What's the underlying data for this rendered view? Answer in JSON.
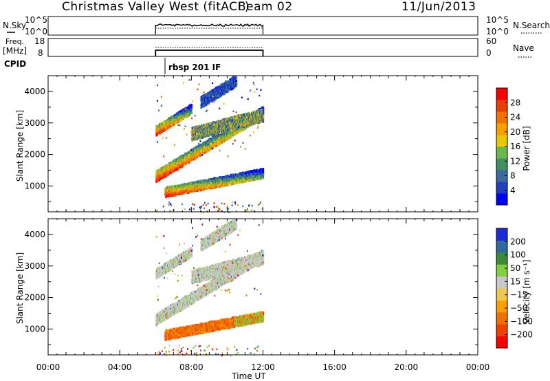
{
  "header": {
    "title": "Christmas Valley West (fitACF)",
    "beam": "Beam 02",
    "date": "11/Jun/2013"
  },
  "top_panels": {
    "nsky_label": "N.Sky",
    "nsky_ticks": [
      "10^5",
      "10^0"
    ],
    "nsearch_label": "N.Search",
    "freq_label": "Freq.",
    "freq_unit": "[MHz]",
    "freq_ticks": [
      "18",
      "8"
    ],
    "nave_ticks": [
      "60",
      "0"
    ],
    "nave_label": "Nave",
    "cpid_label": "CPID",
    "cpid_value": "rbsp 201 IF"
  },
  "colors": {
    "power": [
      "#0000ff",
      "#2040c0",
      "#3a6aa0",
      "#3f8f5f",
      "#6ab84a",
      "#e8c800",
      "#f8a000",
      "#f07000",
      "#e84000",
      "#ff0000"
    ],
    "velocity": [
      "#ff0000",
      "#f04000",
      "#f07000",
      "#f8a000",
      "#f0c850",
      "#c8c8c8",
      "#80d040",
      "#3a8a3a",
      "#2e6aa0",
      "#1a2ad8"
    ]
  },
  "chart_data": [
    {
      "type": "heatmap",
      "name": "power-panel",
      "ylabel": "Slant Range [km]",
      "x_range_hours": [
        0,
        24
      ],
      "y_range_km": [
        180,
        4500
      ],
      "y_ticks": [
        "4000",
        "3000",
        "2000",
        "1000"
      ],
      "colorbar": {
        "label": "Power [dB]",
        "ticks": [
          "28",
          "24",
          "20",
          "16",
          "12",
          "8",
          "4"
        ]
      },
      "data_window_hours": [
        6.0,
        12.0
      ],
      "bands": [
        {
          "t_start": 6.0,
          "t_end": 12.0,
          "r_start_km": 1350,
          "r_end_km": 3400,
          "thickness_km": 350
        },
        {
          "t_start": 6.0,
          "t_end": 8.0,
          "r_start_km": 2800,
          "r_end_km": 3500,
          "thickness_km": 300
        },
        {
          "t_start": 8.0,
          "t_end": 12.0,
          "r_start_km": 2700,
          "r_end_km": 3300,
          "thickness_km": 400
        },
        {
          "t_start": 6.5,
          "t_end": 12.0,
          "r_start_km": 850,
          "r_end_km": 1450,
          "thickness_km": 300
        },
        {
          "t_start": 8.5,
          "t_end": 10.5,
          "r_start_km": 3700,
          "r_end_km": 4400,
          "thickness_km": 350
        }
      ]
    },
    {
      "type": "heatmap",
      "name": "velocity-panel",
      "xlabel": "Time UT",
      "ylabel": "Slant Range [km]",
      "x_range_hours": [
        0,
        24
      ],
      "y_range_km": [
        180,
        4500
      ],
      "x_ticks": [
        "00:00",
        "04:00",
        "08:00",
        "12:00",
        "16:00",
        "20:00",
        "00:00"
      ],
      "y_ticks": [
        "4000",
        "3000",
        "2000",
        "1000"
      ],
      "colorbar": {
        "label": "Velocity [m s⁻¹]",
        "ticks": [
          "200",
          "100",
          "50",
          "15",
          "−15",
          "−50",
          "−100",
          "−200"
        ]
      },
      "data_window_hours": [
        6.0,
        12.0
      ],
      "bands": [
        {
          "t_start": 6.0,
          "t_end": 12.0,
          "r_start_km": 1350,
          "r_end_km": 3400,
          "thickness_km": 350
        },
        {
          "t_start": 6.0,
          "t_end": 8.0,
          "r_start_km": 2800,
          "r_end_km": 3500,
          "thickness_km": 300
        },
        {
          "t_start": 8.0,
          "t_end": 12.0,
          "r_start_km": 2700,
          "r_end_km": 3300,
          "thickness_km": 400
        },
        {
          "t_start": 6.5,
          "t_end": 12.0,
          "r_start_km": 850,
          "r_end_km": 1450,
          "thickness_km": 300
        },
        {
          "t_start": 8.5,
          "t_end": 10.5,
          "r_start_km": 3700,
          "r_end_km": 4400,
          "thickness_km": 350
        }
      ]
    }
  ]
}
